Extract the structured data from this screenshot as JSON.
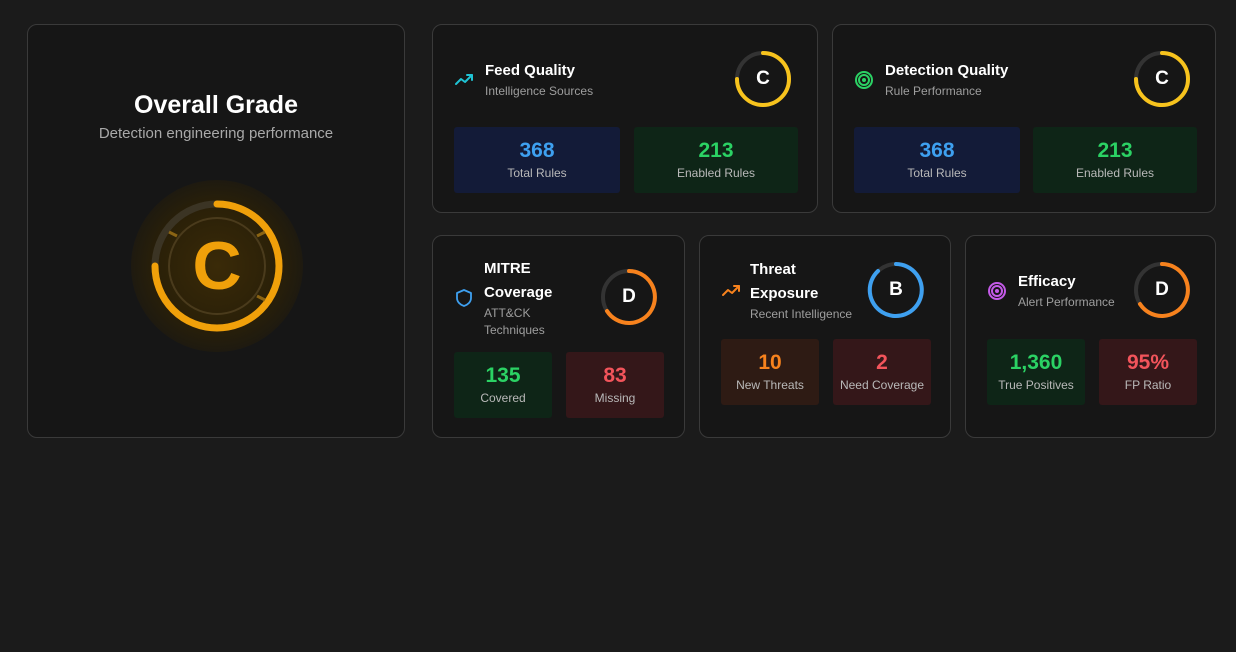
{
  "overall": {
    "title": "Overall Grade",
    "subtitle": "Detection engineering performance",
    "grade": "C",
    "color": "#f0a00a"
  },
  "cards": {
    "feed_quality": {
      "title": "Feed Quality",
      "subtitle": "Intelligence Sources",
      "icon": "trending-up-icon",
      "grade": "C",
      "grade_color": "#f7c31d",
      "stats": [
        {
          "value": "368",
          "label": "Total Rules"
        },
        {
          "value": "213",
          "label": "Enabled Rules"
        }
      ]
    },
    "detection_quality": {
      "title": "Detection Quality",
      "subtitle": "Rule Performance",
      "icon": "target-icon",
      "grade": "C",
      "grade_color": "#f7c31d",
      "stats": [
        {
          "value": "368",
          "label": "Total Rules"
        },
        {
          "value": "213",
          "label": "Enabled Rules"
        }
      ]
    },
    "mitre_coverage": {
      "title_line1": "MITRE",
      "title_line2": "Coverage",
      "subtitle_line1": "ATT&CK",
      "subtitle_line2": "Techniques",
      "icon": "shield-icon",
      "grade": "D",
      "grade_color": "#f7821d",
      "stats": [
        {
          "value": "135",
          "label": "Covered"
        },
        {
          "value": "83",
          "label": "Missing"
        }
      ]
    },
    "threat_exposure": {
      "title_line1": "Threat",
      "title_line2": "Exposure",
      "subtitle": "Recent Intelligence",
      "icon": "trending-up-icon",
      "grade": "B",
      "grade_color": "#3ea0f0",
      "stats": [
        {
          "value": "10",
          "label": "New Threats"
        },
        {
          "value": "2",
          "label": "Need Coverage"
        }
      ]
    },
    "efficacy": {
      "title": "Efficacy",
      "subtitle": "Alert Performance",
      "icon": "target-icon",
      "grade": "D",
      "grade_color": "#f7821d",
      "stats": [
        {
          "value": "1,360",
          "label": "True Positives"
        },
        {
          "value": "95%",
          "label": "FP Ratio"
        }
      ]
    }
  }
}
